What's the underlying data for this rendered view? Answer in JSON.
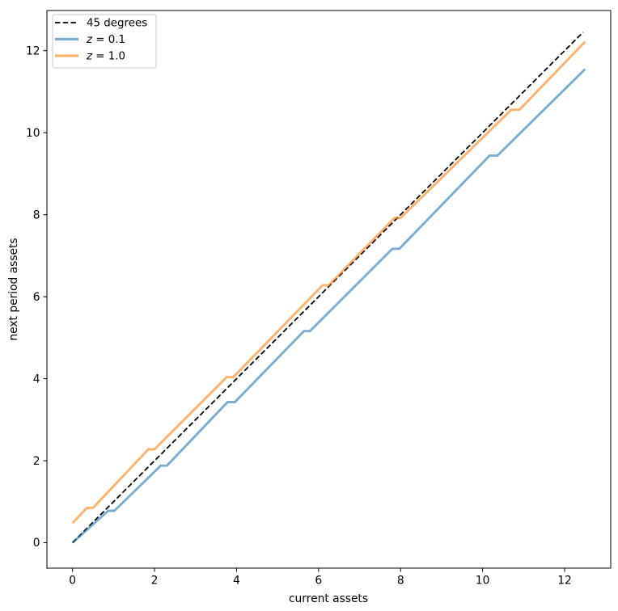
{
  "figure": {
    "background": "#ffffff",
    "spine_color": "#000000",
    "text_color": "#000000"
  },
  "chart_data": {
    "type": "line",
    "title": "",
    "xlabel": "current assets",
    "ylabel": "next period assets",
    "xlim": [
      -0.625,
      13.125
    ],
    "ylim": [
      -0.62,
      12.98
    ],
    "xticks": [
      0,
      2,
      4,
      6,
      8,
      10,
      12
    ],
    "yticks": [
      0,
      2,
      4,
      6,
      8,
      10,
      12
    ],
    "grid": false,
    "legend": {
      "position": "upper left"
    },
    "series": [
      {
        "name": "45 degrees",
        "linestyle": "dashed",
        "color": "#000000",
        "alpha": 1.0,
        "linewidth": 1.8,
        "math_label": false,
        "points": [
          [
            0,
            0
          ],
          [
            12.45,
            12.45
          ]
        ]
      },
      {
        "name": "z = 0.1",
        "linestyle": "solid",
        "color": "#1f77b4",
        "alpha": 0.6,
        "linewidth": 2.9,
        "math_label": true,
        "points": [
          [
            0,
            0
          ],
          [
            0.87,
            0.78
          ],
          [
            1.02,
            0.78
          ],
          [
            2.15,
            1.88
          ],
          [
            2.3,
            1.88
          ],
          [
            3.78,
            3.43
          ],
          [
            3.96,
            3.43
          ],
          [
            5.64,
            5.16
          ],
          [
            5.79,
            5.16
          ],
          [
            7.8,
            7.17
          ],
          [
            7.97,
            7.17
          ],
          [
            10.17,
            9.44
          ],
          [
            10.36,
            9.44
          ],
          [
            12.5,
            11.55
          ]
        ]
      },
      {
        "name": "z = 1.0",
        "linestyle": "solid",
        "color": "#ff7f0e",
        "alpha": 0.6,
        "linewidth": 2.9,
        "math_label": true,
        "points": [
          [
            0,
            0.48
          ],
          [
            0.35,
            0.85
          ],
          [
            0.5,
            0.85
          ],
          [
            1.85,
            2.28
          ],
          [
            2.0,
            2.28
          ],
          [
            3.76,
            4.04
          ],
          [
            3.92,
            4.04
          ],
          [
            6.1,
            6.28
          ],
          [
            6.25,
            6.28
          ],
          [
            7.85,
            7.92
          ],
          [
            8.0,
            7.92
          ],
          [
            10.7,
            10.56
          ],
          [
            10.9,
            10.56
          ],
          [
            12.5,
            12.22
          ]
        ]
      }
    ]
  }
}
